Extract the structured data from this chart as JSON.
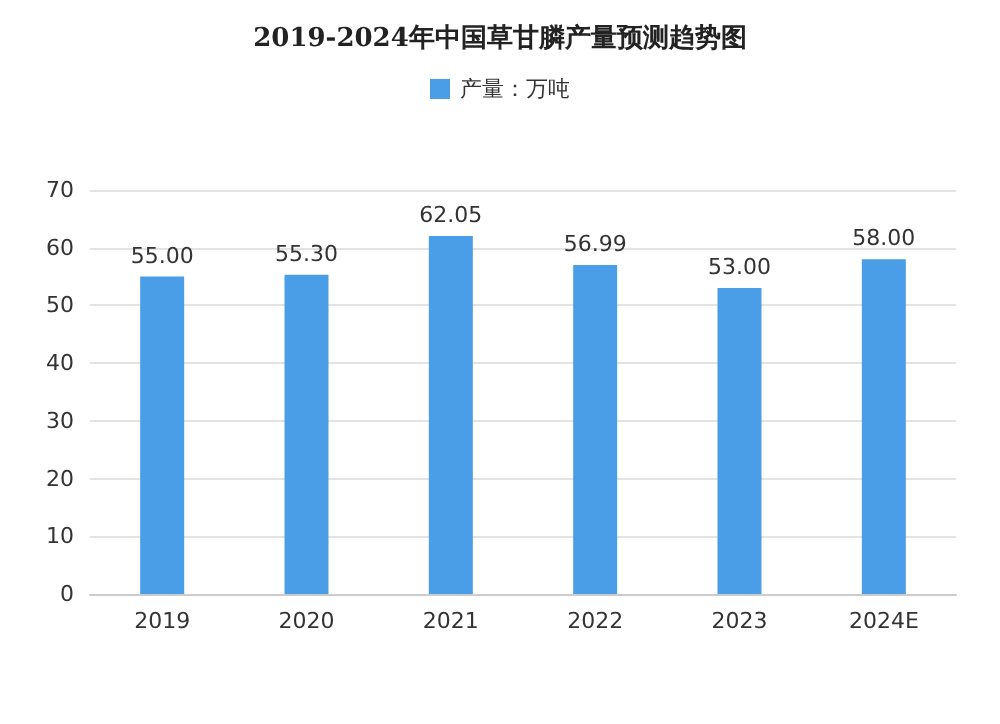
{
  "chart_data": {
    "type": "bar",
    "title": "2019-2024年中国草甘膦产量预测趋势图",
    "categories": [
      "2019",
      "2020",
      "2021",
      "2022",
      "2023",
      "2024E"
    ],
    "series": [
      {
        "name": "产量：万吨",
        "color": "#4a9ee8",
        "values": [
          55.0,
          55.3,
          62.05,
          56.99,
          53.0,
          58.0
        ],
        "value_labels": [
          "55.00",
          "55.30",
          "62.05",
          "56.99",
          "53.00",
          "58.00"
        ]
      }
    ],
    "ylim": [
      0,
      70
    ],
    "yticks": [
      0,
      10,
      20,
      30,
      40,
      50,
      60,
      70
    ],
    "grid": "y",
    "legend": "top"
  }
}
